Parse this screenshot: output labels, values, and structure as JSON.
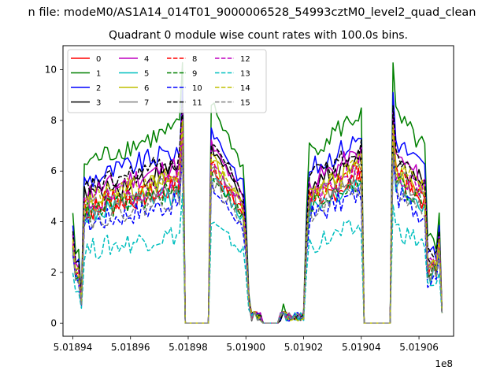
{
  "figure": {
    "suptitle": "n file: modeM0/AS1A14_014T01_9000006528_54993cztM0_level2_quad_clean"
  },
  "chart_data": {
    "type": "line",
    "title": "Quadrant 0 module wise count rates with 100.0s bins.",
    "xlabel": "",
    "ylabel": "",
    "x_offset_label": "1e8",
    "xlim": [
      501893660,
      501907200
    ],
    "ylim": [
      -0.52,
      10.95
    ],
    "x_tick_values": [
      501894000,
      501896000,
      501898000,
      501900000,
      501902000,
      501904000,
      501906000
    ],
    "x_tick_labels": [
      "5.01894",
      "5.01896",
      "5.01898",
      "5.01900",
      "5.01902",
      "5.01904",
      "5.01906"
    ],
    "y_tick_values": [
      0,
      2,
      4,
      6,
      8,
      10
    ],
    "y_tick_labels": [
      "0",
      "2",
      "4",
      "6",
      "8",
      "10"
    ],
    "grid": false,
    "legend_position": "upper-left",
    "legend_columns": 4,
    "segments": [
      {
        "x_start": 501894000,
        "x_end": 501897800,
        "n": 39
      },
      {
        "x_start": 501897900,
        "x_end": 501898700,
        "n": 9
      },
      {
        "x_start": 501898800,
        "x_end": 501900000,
        "n": 13
      },
      {
        "x_start": 501900100,
        "x_end": 501902000,
        "n": 20
      },
      {
        "x_start": 501902100,
        "x_end": 501904000,
        "n": 20
      },
      {
        "x_start": 501904100,
        "x_end": 501905000,
        "n": 10
      },
      {
        "x_start": 501905100,
        "x_end": 501906800,
        "n": 18
      }
    ],
    "series": [
      {
        "name": "0",
        "color": "#ff0000",
        "dash": "solid",
        "level": 5.5
      },
      {
        "name": "1",
        "color": "#008000",
        "dash": "solid",
        "level": 7.9
      },
      {
        "name": "2",
        "color": "#0000ff",
        "dash": "solid",
        "level": 7.0
      },
      {
        "name": "3",
        "color": "#000000",
        "dash": "solid",
        "level": 6.3
      },
      {
        "name": "4",
        "color": "#bf00bf",
        "dash": "solid",
        "level": 6.4
      },
      {
        "name": "5",
        "color": "#00bfbf",
        "dash": "solid",
        "level": 5.3
      },
      {
        "name": "6",
        "color": "#bfbf00",
        "dash": "solid",
        "level": 5.9
      },
      {
        "name": "7",
        "color": "#808080",
        "dash": "solid",
        "level": 5.6
      },
      {
        "name": "8",
        "color": "#ff0000",
        "dash": "dashed",
        "level": 5.7
      },
      {
        "name": "9",
        "color": "#008000",
        "dash": "dashed",
        "level": 5.4
      },
      {
        "name": "10",
        "color": "#0000ff",
        "dash": "dashed",
        "level": 4.9
      },
      {
        "name": "11",
        "color": "#000000",
        "dash": "dashed",
        "level": 6.6
      },
      {
        "name": "12",
        "color": "#bf00bf",
        "dash": "dashed",
        "level": 5.8
      },
      {
        "name": "13",
        "color": "#00bfbf",
        "dash": "dashed",
        "level": 3.6
      },
      {
        "name": "14",
        "color": "#bfbf00",
        "dash": "dashed",
        "level": 6.0
      },
      {
        "name": "15",
        "color": "#808080",
        "dash": "dashed",
        "level": 5.1
      }
    ]
  }
}
